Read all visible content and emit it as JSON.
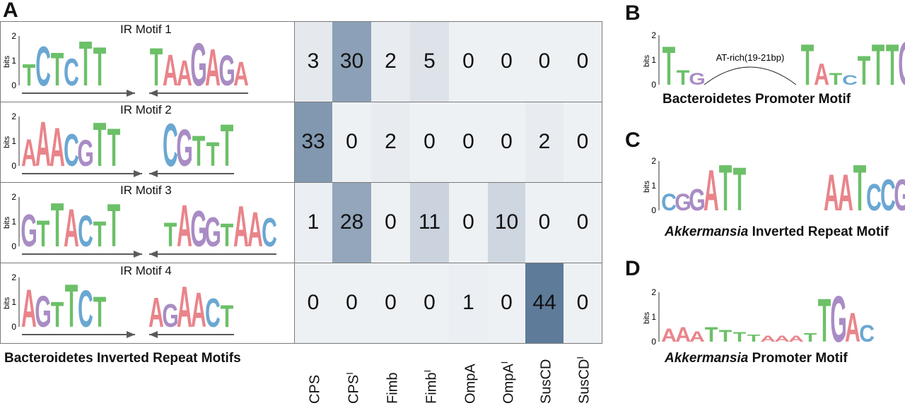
{
  "panels": {
    "a": "A",
    "b": "B",
    "c": "C",
    "d": "D"
  },
  "axis": {
    "bits_label": "bits",
    "tick_0": "0",
    "tick_1": "1",
    "tick_2": "2"
  },
  "panel_a": {
    "caption": "Bacteroidetes Inverted Repeat Motifs",
    "columns": [
      "CPS",
      "CPS",
      "Fimb",
      "Fimb",
      "OmpA",
      "OmpA",
      "SusCD",
      "SusCD"
    ],
    "column_superscripts": [
      "",
      "I",
      "",
      "I",
      "",
      "I",
      "",
      "I"
    ],
    "motifs": [
      {
        "title": "IR Motif 1",
        "left_seq": "TCTCTT",
        "right_seq": "TAAGAGA"
      },
      {
        "title": "IR Motif 2",
        "left_seq": "AAACGTT",
        "right_seq": "CGTTT"
      },
      {
        "title": "IR Motif 3",
        "left_seq": "GTTACTT",
        "right_seq": "TAGGTAAC"
      },
      {
        "title": "IR Motif 4",
        "left_seq": "AGTTCT",
        "right_seq": "AGAACT"
      }
    ],
    "counts": [
      [
        3,
        30,
        2,
        5,
        0,
        0,
        0,
        0
      ],
      [
        33,
        0,
        2,
        0,
        0,
        0,
        2,
        0
      ],
      [
        1,
        28,
        0,
        11,
        0,
        10,
        0,
        0
      ],
      [
        0,
        0,
        0,
        0,
        1,
        0,
        44,
        0
      ]
    ],
    "count_max": 44
  },
  "panel_b": {
    "caption": "Bacteroidetes Promoter Motif",
    "spacer_label": "AT-rich(19-21bp)",
    "left_seq": "TTG",
    "right_seq": "TATCTTTG"
  },
  "panel_c": {
    "caption_italic": "Akkermansia",
    "caption_rest": " Inverted Repeat Motif",
    "left_seq": "CGGATT",
    "right_seq": "AATCCG"
  },
  "panel_d": {
    "caption_italic": "Akkermansia",
    "caption_rest": " Promoter Motif",
    "seq": "AAATTTTAAATTGAC"
  },
  "colors": {
    "A": "#e9848a",
    "C": "#6aa7d2",
    "G": "#a98cc4",
    "T": "#6cc068",
    "heat_max": "#5e7b9a",
    "arrow": "#5a5a5a"
  }
}
